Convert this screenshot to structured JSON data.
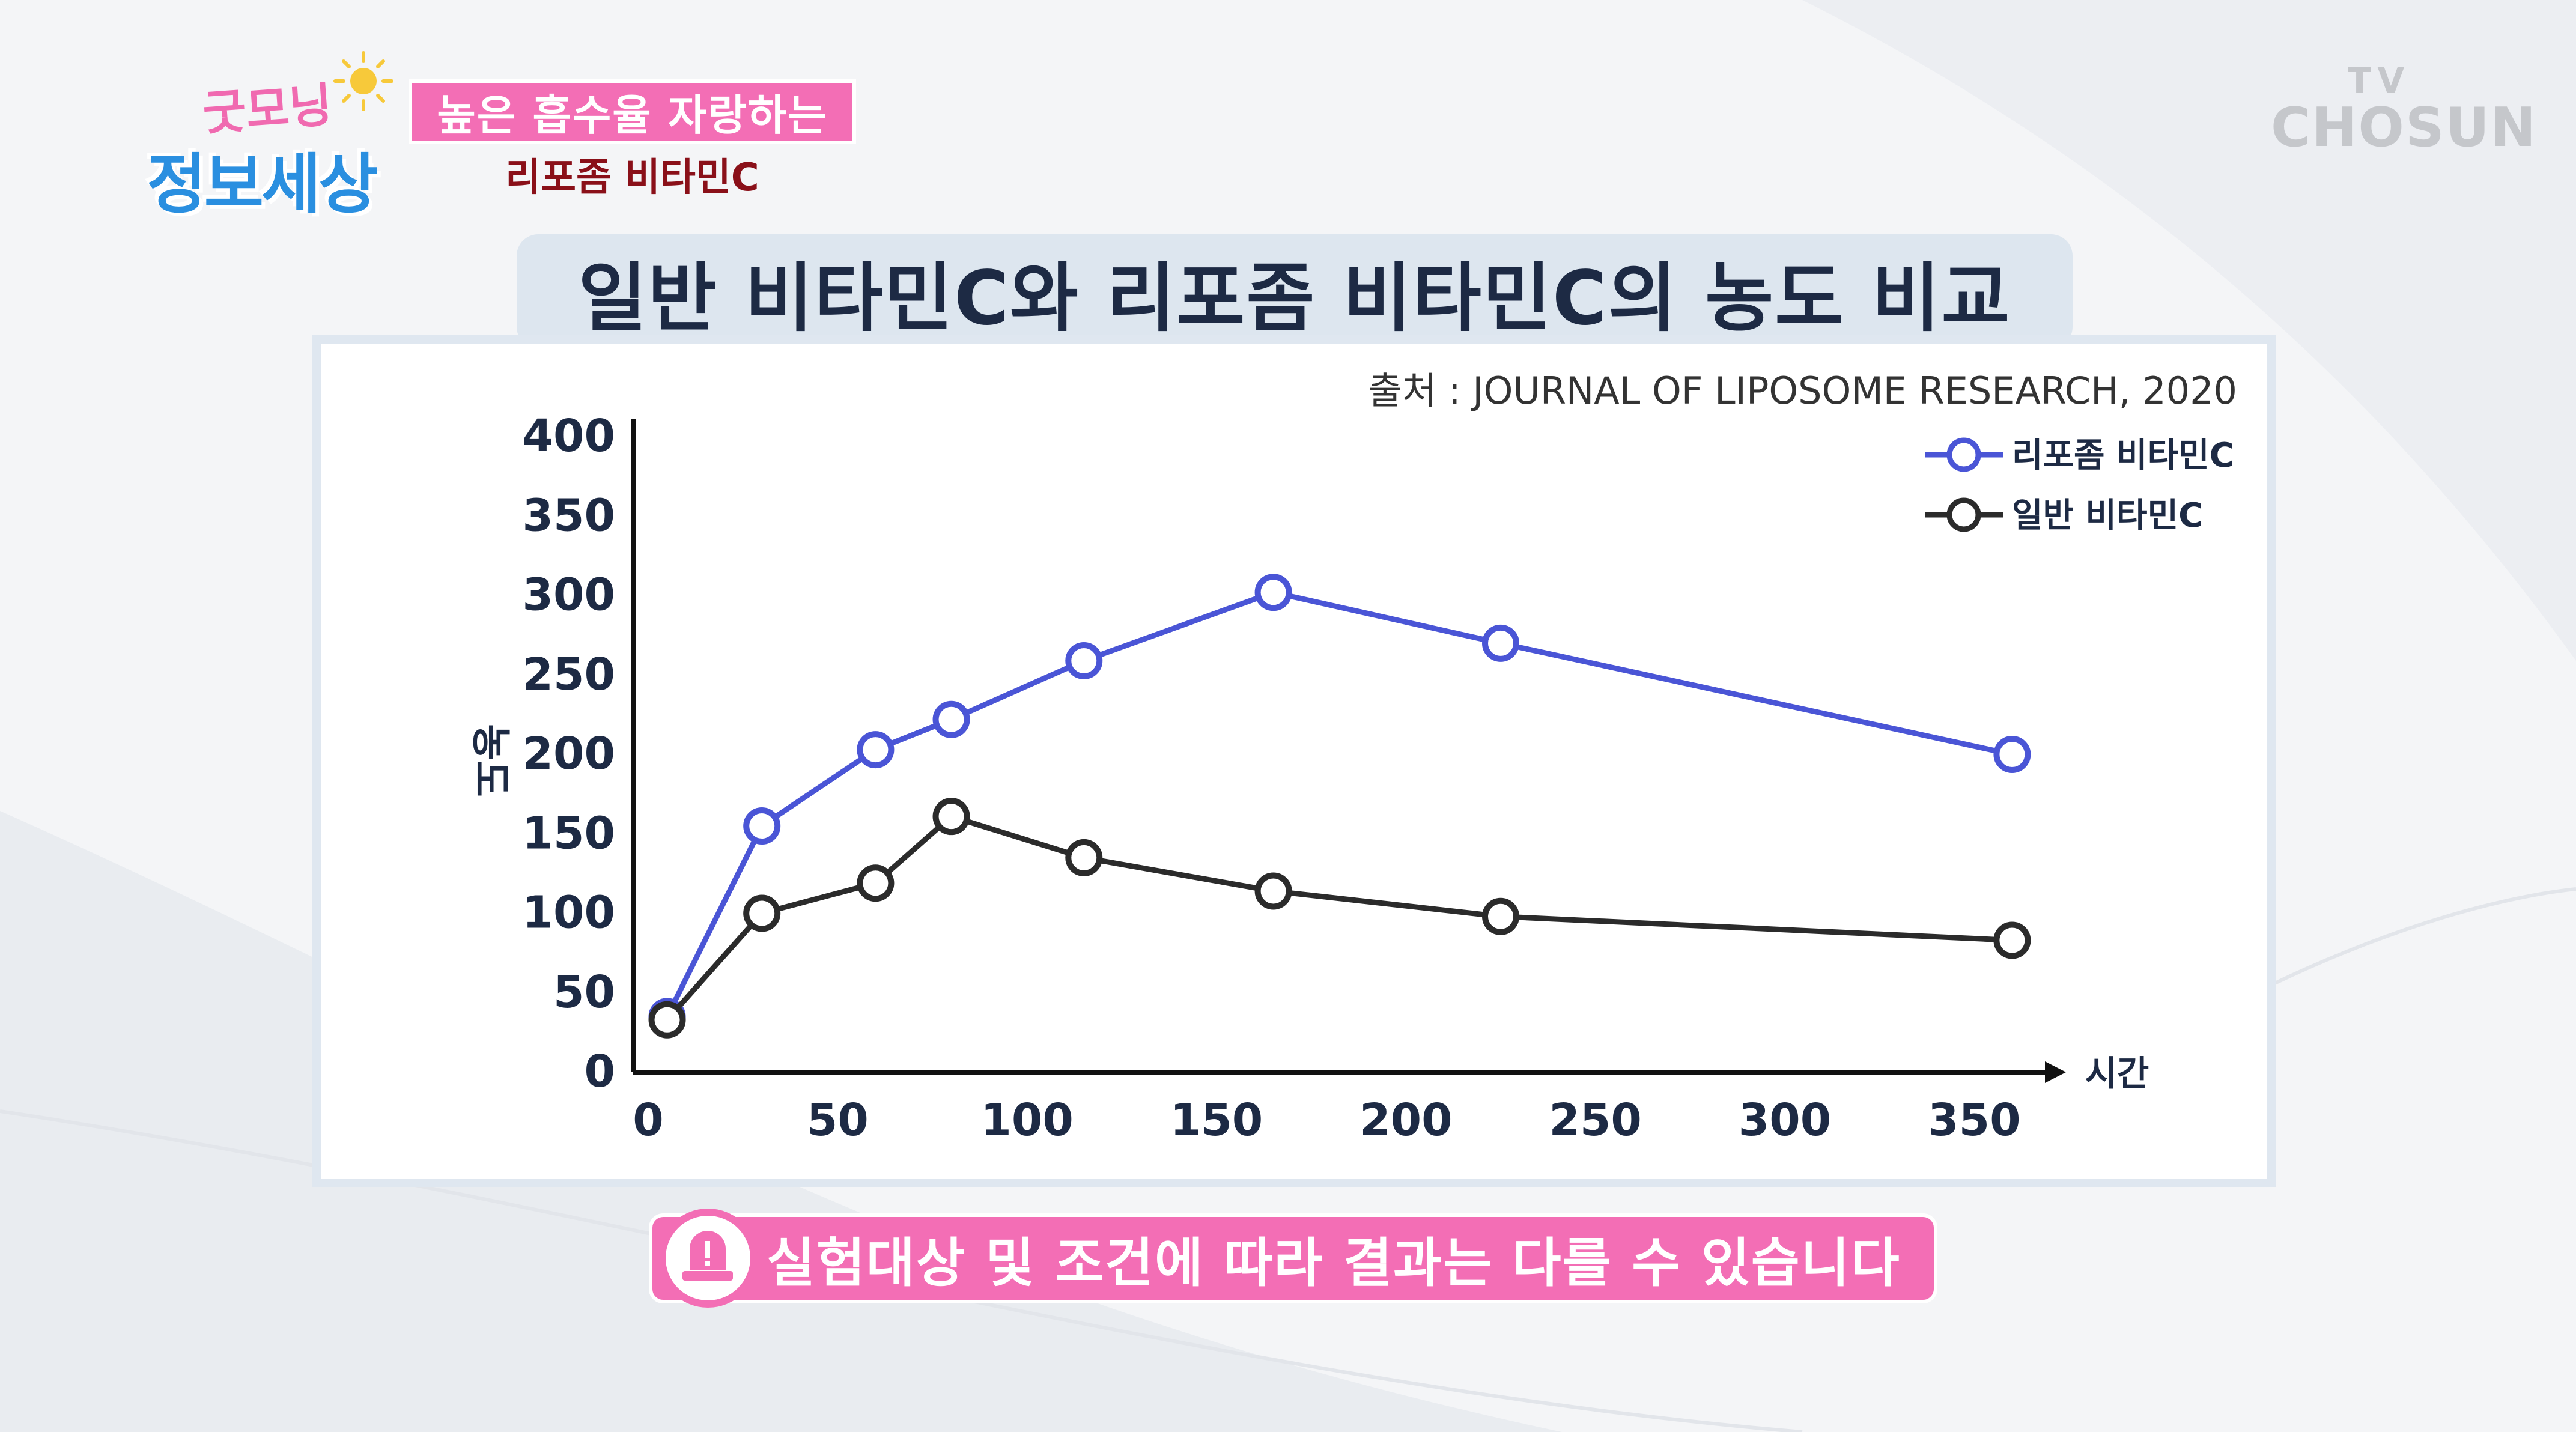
{
  "logo": {
    "top_text": "굿모닝",
    "main_text": "정보세상"
  },
  "caption": {
    "line1": "높은 흡수율 자랑하는",
    "line2": "리포좀 비타민C"
  },
  "watermark": {
    "tv": "TV",
    "name": "CHOSUN"
  },
  "title": "일반 비타민C와 리포좀 비타민C의 농도 비교",
  "disclaimer": "실험대상 및 조건에 따라 결과는 다를 수 있습니다",
  "colors": {
    "liposome": "#4a55d6",
    "regular": "#2b2b2b",
    "pink": "#f36eb5",
    "title_text": "#1d2a44"
  },
  "chart_data": {
    "type": "line",
    "source": "출처 : JOURNAL OF LIPOSOME RESEARCH, 2020",
    "xlabel": "시간",
    "ylabel": "농도",
    "xlim": [
      0,
      375
    ],
    "ylim": [
      0,
      400
    ],
    "x_ticks": [
      0,
      50,
      100,
      150,
      200,
      250,
      300,
      350
    ],
    "y_ticks": [
      0,
      50,
      100,
      150,
      200,
      250,
      300,
      350,
      400
    ],
    "legend_position": "top-right",
    "grid": false,
    "series": [
      {
        "name": "리포좀 비타민C",
        "color": "#4a55d6",
        "points": [
          [
            5,
            35
          ],
          [
            30,
            155
          ],
          [
            60,
            203
          ],
          [
            80,
            222
          ],
          [
            115,
            259
          ],
          [
            165,
            302
          ],
          [
            225,
            270
          ],
          [
            360,
            200
          ]
        ]
      },
      {
        "name": "일반 비타민C",
        "color": "#2b2b2b",
        "points": [
          [
            5,
            33
          ],
          [
            30,
            100
          ],
          [
            60,
            119
          ],
          [
            80,
            161
          ],
          [
            115,
            135
          ],
          [
            165,
            114
          ],
          [
            225,
            98
          ],
          [
            360,
            83
          ]
        ]
      }
    ]
  }
}
